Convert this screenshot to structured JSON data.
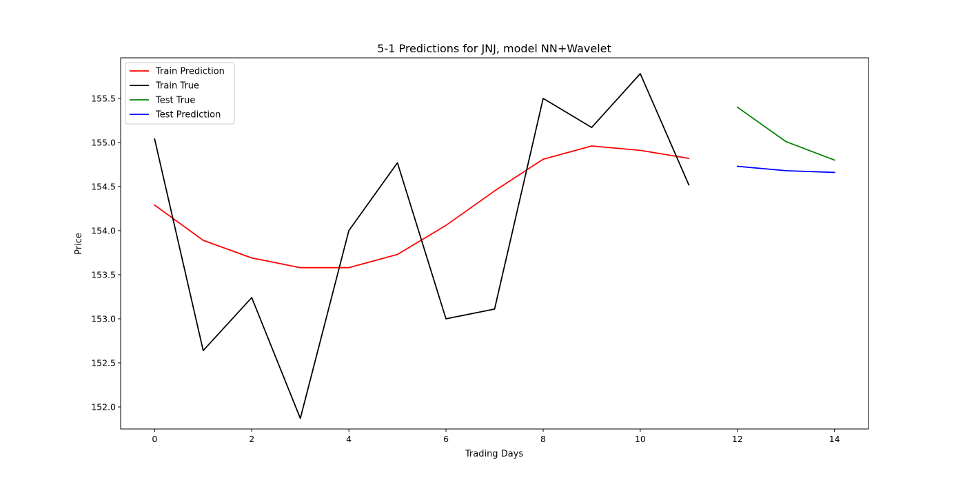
{
  "chart_data": {
    "type": "line",
    "title": "5-1 Predictions for JNJ, model NN+Wavelet",
    "xlabel": "Trading Days",
    "ylabel": "Price",
    "xlim": [
      -0.7,
      14.7
    ],
    "ylim": [
      151.75,
      155.96
    ],
    "xticks": [
      0,
      2,
      4,
      6,
      8,
      10,
      12,
      14
    ],
    "yticks": [
      152.0,
      152.5,
      153.0,
      153.5,
      154.0,
      154.5,
      155.0,
      155.5
    ],
    "grid": false,
    "legend_position": "upper-left",
    "series": [
      {
        "name": "Train Prediction",
        "color": "#ff0000",
        "x": [
          0,
          1,
          2,
          3,
          4,
          5,
          6,
          7,
          8,
          9,
          10,
          11
        ],
        "y": [
          154.29,
          153.89,
          153.69,
          153.58,
          153.58,
          153.73,
          154.06,
          154.45,
          154.81,
          154.96,
          154.91,
          154.82
        ]
      },
      {
        "name": "Train True",
        "color": "#000000",
        "x": [
          0,
          1,
          2,
          3,
          4,
          5,
          6,
          7,
          8,
          9,
          10,
          11
        ],
        "y": [
          155.04,
          152.64,
          153.24,
          151.87,
          154.0,
          154.77,
          153.0,
          153.11,
          155.5,
          155.17,
          155.78,
          154.52
        ]
      },
      {
        "name": "Test True",
        "color": "#008000",
        "x": [
          12,
          13,
          14
        ],
        "y": [
          155.4,
          155.01,
          154.8
        ]
      },
      {
        "name": "Test Prediction",
        "color": "#0000ff",
        "x": [
          12,
          13,
          14
        ],
        "y": [
          154.73,
          154.68,
          154.66
        ]
      }
    ]
  }
}
